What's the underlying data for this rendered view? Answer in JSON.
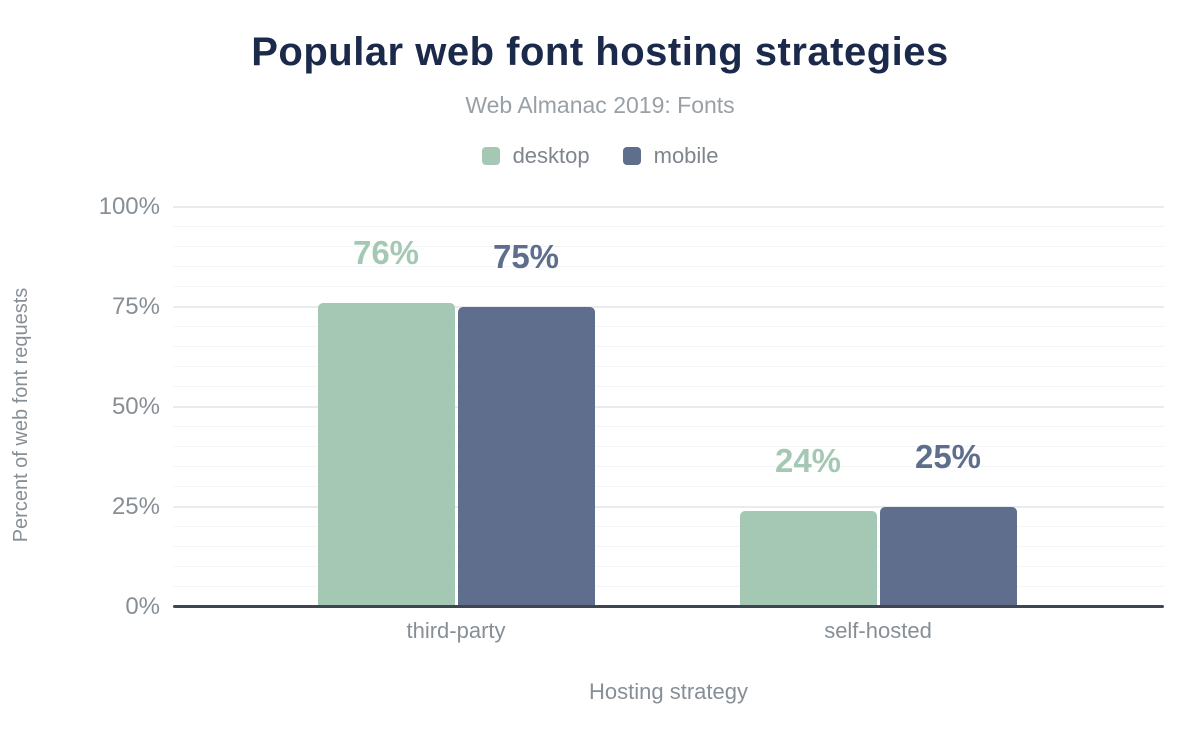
{
  "chart_data": {
    "type": "bar",
    "title": "Popular web font hosting strategies",
    "subtitle": "Web Almanac 2019: Fonts",
    "xlabel": "Hosting strategy",
    "ylabel": "Percent of web font requests",
    "categories": [
      "third-party",
      "self-hosted"
    ],
    "series": [
      {
        "name": "desktop",
        "color": "#a5c8b5",
        "values": [
          76,
          24
        ]
      },
      {
        "name": "mobile",
        "color": "#5e6e8c",
        "values": [
          75,
          25
        ]
      }
    ],
    "value_labels": [
      "76%",
      "75%",
      "24%",
      "25%"
    ],
    "ylim": [
      0,
      100
    ],
    "y_ticks": [
      0,
      25,
      50,
      75,
      100
    ],
    "y_minor_step": 5,
    "y_tick_suffix": "%",
    "grid": true,
    "legend_position": "top"
  },
  "colors": {
    "title": "#1b2a4a",
    "subtitle": "#98a0a7",
    "axis_text": "#878f96",
    "legend_text": "#7e858c",
    "baseline": "#3e4651",
    "gridline_major": "#e9ebee",
    "gridline_minor": "#f4f5f6",
    "background": "#ffffff"
  }
}
